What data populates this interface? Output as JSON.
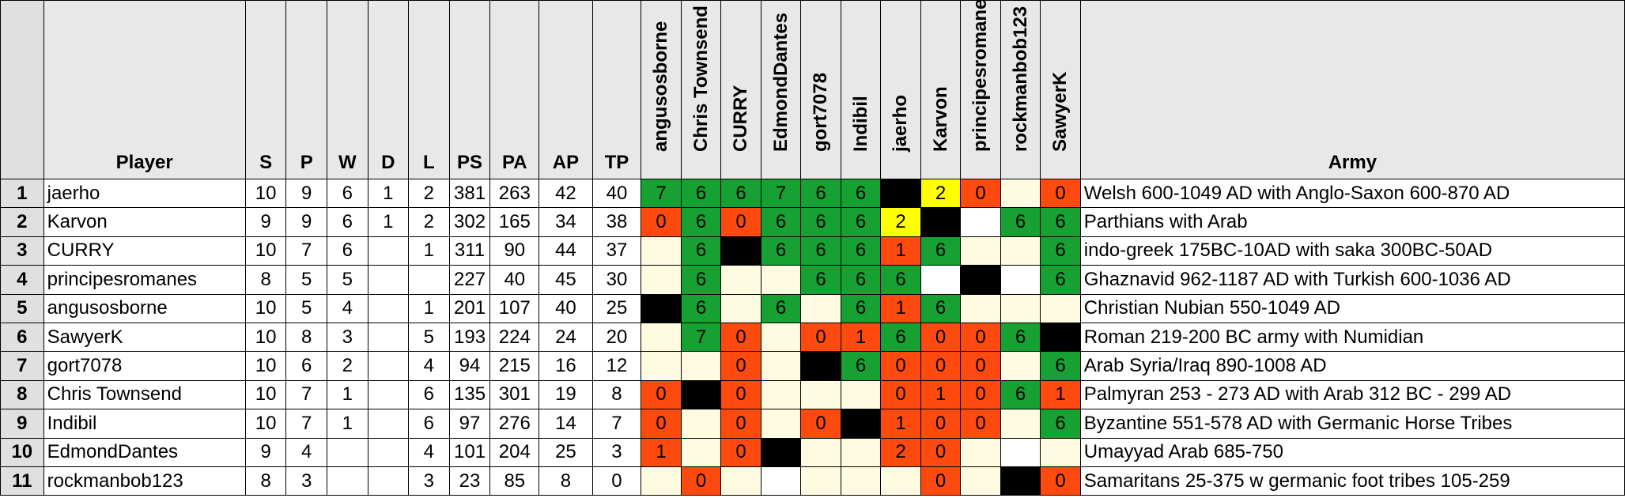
{
  "headers": {
    "player": "Player",
    "stats": [
      "S",
      "P",
      "W",
      "D",
      "L",
      "PS",
      "PA",
      "AP",
      "TP"
    ],
    "opponents": [
      "angusosborne",
      "Chris Townsend",
      "CURRY",
      "EdmondDantes",
      "gort7078",
      "Indibil",
      "jaerho",
      "Karvon",
      "principesromanes",
      "rockmanbob123",
      "SawyerK"
    ],
    "army": "Army"
  },
  "colors": {
    "win": "#17a132",
    "loss": "#ff4a0f",
    "draw": "#ffff00",
    "self": "#000000",
    "unplayed": "#fffbe0",
    "blank": "#ffffff",
    "index_bg": "#e0e0e0"
  },
  "rows": [
    {
      "n": "1",
      "player": "jaerho",
      "stats": [
        "10",
        "9",
        "6",
        "1",
        "2",
        "381",
        "263",
        "42",
        "40"
      ],
      "cells": [
        {
          "t": "win",
          "v": "7"
        },
        {
          "t": "win",
          "v": "6"
        },
        {
          "t": "win",
          "v": "6"
        },
        {
          "t": "win",
          "v": "7"
        },
        {
          "t": "win",
          "v": "6"
        },
        {
          "t": "win",
          "v": "6"
        },
        {
          "t": "self",
          "v": ""
        },
        {
          "t": "draw",
          "v": "2"
        },
        {
          "t": "loss",
          "v": "0"
        },
        {
          "t": "none",
          "v": ""
        },
        {
          "t": "loss",
          "v": "0"
        }
      ],
      "army": "Welsh 600-1049 AD with Anglo-Saxon 600-870 AD"
    },
    {
      "n": "2",
      "player": "Karvon",
      "stats": [
        "9",
        "9",
        "6",
        "1",
        "2",
        "302",
        "165",
        "34",
        "38"
      ],
      "cells": [
        {
          "t": "loss",
          "v": "0"
        },
        {
          "t": "win",
          "v": "6"
        },
        {
          "t": "loss",
          "v": "0"
        },
        {
          "t": "win",
          "v": "6"
        },
        {
          "t": "win",
          "v": "6"
        },
        {
          "t": "win",
          "v": "6"
        },
        {
          "t": "draw",
          "v": "2"
        },
        {
          "t": "self",
          "v": ""
        },
        {
          "t": "blank",
          "v": ""
        },
        {
          "t": "win",
          "v": "6"
        },
        {
          "t": "win",
          "v": "6"
        }
      ],
      "army": "Parthians with Arab"
    },
    {
      "n": "3",
      "player": "CURRY",
      "stats": [
        "10",
        "7",
        "6",
        "",
        "1",
        "311",
        "90",
        "44",
        "37"
      ],
      "cells": [
        {
          "t": "none",
          "v": ""
        },
        {
          "t": "win",
          "v": "6"
        },
        {
          "t": "self",
          "v": ""
        },
        {
          "t": "win",
          "v": "6"
        },
        {
          "t": "win",
          "v": "6"
        },
        {
          "t": "win",
          "v": "6"
        },
        {
          "t": "loss",
          "v": "1"
        },
        {
          "t": "win",
          "v": "6"
        },
        {
          "t": "none",
          "v": ""
        },
        {
          "t": "none",
          "v": ""
        },
        {
          "t": "win",
          "v": "6"
        }
      ],
      "army": "indo-greek 175BC-10AD with saka 300BC-50AD"
    },
    {
      "n": "4",
      "player": "principesromanes",
      "stats": [
        "8",
        "5",
        "5",
        "",
        "",
        "227",
        "40",
        "45",
        "30"
      ],
      "cells": [
        {
          "t": "none",
          "v": ""
        },
        {
          "t": "win",
          "v": "6"
        },
        {
          "t": "none",
          "v": ""
        },
        {
          "t": "none",
          "v": ""
        },
        {
          "t": "win",
          "v": "6"
        },
        {
          "t": "win",
          "v": "6"
        },
        {
          "t": "win",
          "v": "6"
        },
        {
          "t": "blank",
          "v": ""
        },
        {
          "t": "self",
          "v": ""
        },
        {
          "t": "blank",
          "v": ""
        },
        {
          "t": "win",
          "v": "6"
        }
      ],
      "army": "Ghaznavid 962-1187 AD with Turkish 600-1036 AD"
    },
    {
      "n": "5",
      "player": "angusosborne",
      "stats": [
        "10",
        "5",
        "4",
        "",
        "1",
        "201",
        "107",
        "40",
        "25"
      ],
      "cells": [
        {
          "t": "self",
          "v": ""
        },
        {
          "t": "win",
          "v": "6"
        },
        {
          "t": "none",
          "v": ""
        },
        {
          "t": "win",
          "v": "6"
        },
        {
          "t": "none",
          "v": ""
        },
        {
          "t": "win",
          "v": "6"
        },
        {
          "t": "loss",
          "v": "1"
        },
        {
          "t": "win",
          "v": "6"
        },
        {
          "t": "none",
          "v": ""
        },
        {
          "t": "none",
          "v": ""
        },
        {
          "t": "none",
          "v": ""
        }
      ],
      "army": "Christian Nubian 550-1049 AD"
    },
    {
      "n": "6",
      "player": "SawyerK",
      "stats": [
        "10",
        "8",
        "3",
        "",
        "5",
        "193",
        "224",
        "24",
        "20"
      ],
      "cells": [
        {
          "t": "none",
          "v": ""
        },
        {
          "t": "win",
          "v": "7"
        },
        {
          "t": "loss",
          "v": "0"
        },
        {
          "t": "none",
          "v": ""
        },
        {
          "t": "loss",
          "v": "0"
        },
        {
          "t": "loss",
          "v": "1"
        },
        {
          "t": "win",
          "v": "6"
        },
        {
          "t": "loss",
          "v": "0"
        },
        {
          "t": "loss",
          "v": "0"
        },
        {
          "t": "win",
          "v": "6"
        },
        {
          "t": "self",
          "v": ""
        }
      ],
      "army": "Roman 219-200 BC army with Numidian"
    },
    {
      "n": "7",
      "player": "gort7078",
      "stats": [
        "10",
        "6",
        "2",
        "",
        "4",
        "94",
        "215",
        "16",
        "12"
      ],
      "cells": [
        {
          "t": "none",
          "v": ""
        },
        {
          "t": "none",
          "v": ""
        },
        {
          "t": "loss",
          "v": "0"
        },
        {
          "t": "none",
          "v": ""
        },
        {
          "t": "self",
          "v": ""
        },
        {
          "t": "win",
          "v": "6"
        },
        {
          "t": "loss",
          "v": "0"
        },
        {
          "t": "loss",
          "v": "0"
        },
        {
          "t": "loss",
          "v": "0"
        },
        {
          "t": "none",
          "v": ""
        },
        {
          "t": "win",
          "v": "6"
        }
      ],
      "army": "Arab Syria/Iraq 890-1008 AD"
    },
    {
      "n": "8",
      "player": "Chris Townsend",
      "stats": [
        "10",
        "7",
        "1",
        "",
        "6",
        "135",
        "301",
        "19",
        "8"
      ],
      "cells": [
        {
          "t": "loss",
          "v": "0"
        },
        {
          "t": "self",
          "v": ""
        },
        {
          "t": "loss",
          "v": "0"
        },
        {
          "t": "none",
          "v": ""
        },
        {
          "t": "none",
          "v": ""
        },
        {
          "t": "none",
          "v": ""
        },
        {
          "t": "loss",
          "v": "0"
        },
        {
          "t": "loss",
          "v": "1"
        },
        {
          "t": "loss",
          "v": "0"
        },
        {
          "t": "win",
          "v": "6"
        },
        {
          "t": "loss",
          "v": "1"
        }
      ],
      "army": "Palmyran 253 - 273 AD with Arab 312 BC - 299 AD"
    },
    {
      "n": "9",
      "player": "Indibil",
      "stats": [
        "10",
        "7",
        "1",
        "",
        "6",
        "97",
        "276",
        "14",
        "7"
      ],
      "cells": [
        {
          "t": "loss",
          "v": "0"
        },
        {
          "t": "none",
          "v": ""
        },
        {
          "t": "loss",
          "v": "0"
        },
        {
          "t": "none",
          "v": ""
        },
        {
          "t": "loss",
          "v": "0"
        },
        {
          "t": "self",
          "v": ""
        },
        {
          "t": "loss",
          "v": "1"
        },
        {
          "t": "loss",
          "v": "0"
        },
        {
          "t": "loss",
          "v": "0"
        },
        {
          "t": "none",
          "v": ""
        },
        {
          "t": "win",
          "v": "6"
        }
      ],
      "army": "Byzantine 551-578 AD with Germanic Horse Tribes"
    },
    {
      "n": "10",
      "player": "EdmondDantes",
      "stats": [
        "9",
        "4",
        "",
        "",
        "4",
        "101",
        "204",
        "25",
        "3"
      ],
      "cells": [
        {
          "t": "loss",
          "v": "1"
        },
        {
          "t": "none",
          "v": ""
        },
        {
          "t": "loss",
          "v": "0"
        },
        {
          "t": "self",
          "v": ""
        },
        {
          "t": "none",
          "v": ""
        },
        {
          "t": "none",
          "v": ""
        },
        {
          "t": "loss",
          "v": "2"
        },
        {
          "t": "loss",
          "v": "0"
        },
        {
          "t": "none",
          "v": ""
        },
        {
          "t": "blank",
          "v": ""
        },
        {
          "t": "none",
          "v": ""
        }
      ],
      "army": "Umayyad Arab 685-750"
    },
    {
      "n": "11",
      "player": "rockmanbob123",
      "stats": [
        "8",
        "3",
        "",
        "",
        "3",
        "23",
        "85",
        "8",
        "0"
      ],
      "cells": [
        {
          "t": "none",
          "v": ""
        },
        {
          "t": "loss",
          "v": "0"
        },
        {
          "t": "none",
          "v": ""
        },
        {
          "t": "blank",
          "v": ""
        },
        {
          "t": "none",
          "v": ""
        },
        {
          "t": "none",
          "v": ""
        },
        {
          "t": "none",
          "v": ""
        },
        {
          "t": "loss",
          "v": "0"
        },
        {
          "t": "none",
          "v": ""
        },
        {
          "t": "self",
          "v": ""
        },
        {
          "t": "loss",
          "v": "0"
        }
      ],
      "army": "Samaritans 25-375 w germanic foot tribes 105-259"
    }
  ]
}
